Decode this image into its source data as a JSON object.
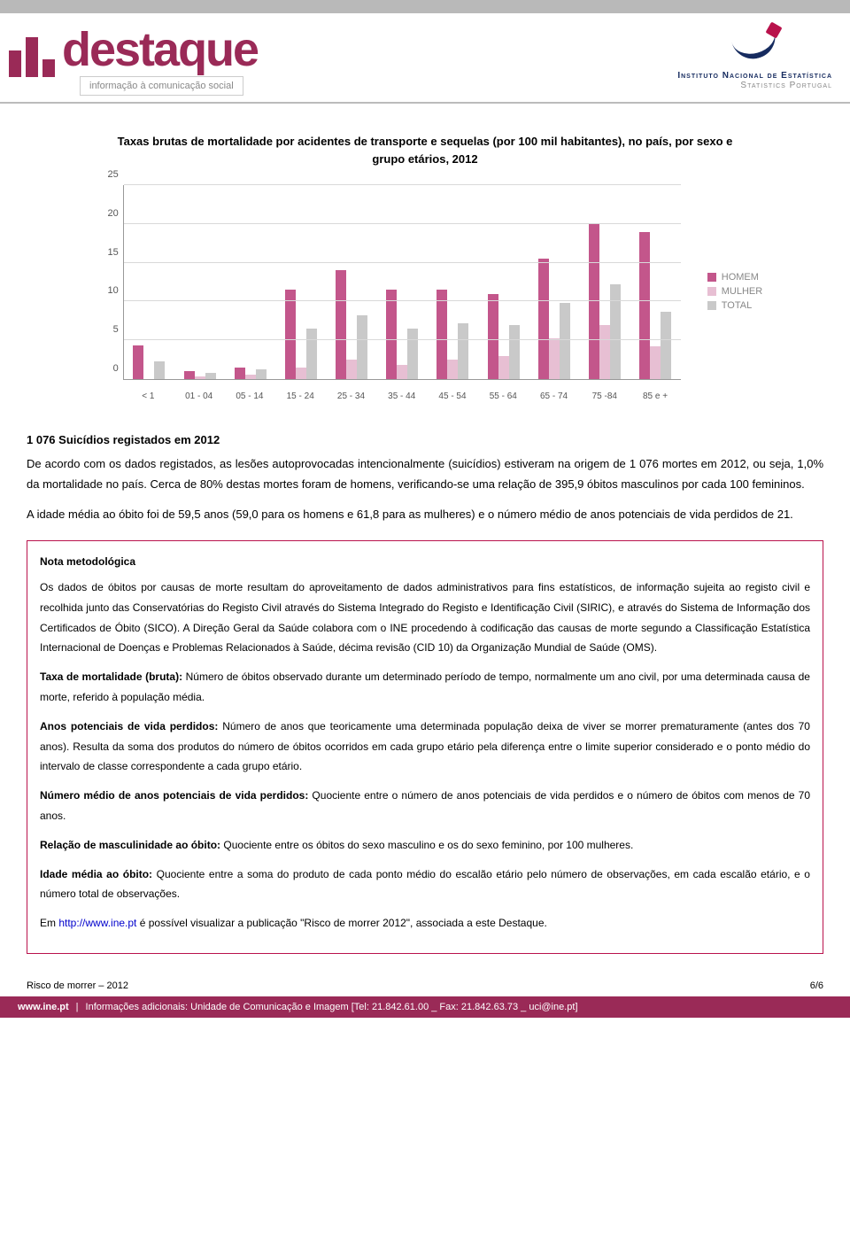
{
  "header": {
    "brand_word": "destaque",
    "tagline": "informação à comunicação social",
    "ine_line1": "Instituto Nacional de Estatística",
    "ine_line2": "Statistics Portugal"
  },
  "chart": {
    "title_line1": "Taxas brutas de mortalidade por acidentes de transporte e sequelas (por 100 mil habitantes), no país, por sexo e",
    "title_line2": "grupo etários, 2012",
    "categories": [
      "< 1",
      "01 - 04",
      "05 - 14",
      "15 - 24",
      "25 - 34",
      "35 - 44",
      "45 - 54",
      "55 - 64",
      "65 - 74",
      "75 -84",
      "85 e +"
    ],
    "series": [
      {
        "name": "HOMEM",
        "color": "#c3568b",
        "values": [
          4.3,
          1.0,
          1.5,
          11.5,
          14.0,
          11.5,
          11.5,
          11.0,
          15.5,
          20.0,
          19.0
        ]
      },
      {
        "name": "MULHER",
        "color": "#e7bfd3",
        "values": [
          0.0,
          0.4,
          0.6,
          1.5,
          2.5,
          1.8,
          2.5,
          3.0,
          5.3,
          7.0,
          4.2
        ]
      },
      {
        "name": "TOTAL",
        "color": "#c9c9c9",
        "values": [
          2.3,
          0.8,
          1.3,
          6.5,
          8.2,
          6.5,
          7.2,
          7.0,
          9.8,
          12.2,
          8.7
        ]
      }
    ],
    "ylim": [
      0,
      25
    ],
    "ytick_step": 5,
    "grid_color": "#d9d9d9",
    "axis_font_size": 11,
    "background_color": "#ffffff"
  },
  "section_heading": "1 076 Suicídios registados em 2012",
  "paragraphs": {
    "p1": "De acordo com os dados registados, as lesões autoprovocadas intencionalmente (suicídios) estiveram na origem de 1 076 mortes em 2012, ou seja, 1,0% da mortalidade no país. Cerca de 80% destas mortes foram de homens, verificando-se uma relação de 395,9 óbitos masculinos por cada 100 femininos.",
    "p2": "A idade média ao óbito foi de 59,5 anos (59,0 para os homens e 61,8 para as mulheres) e o número médio de anos potenciais de vida perdidos de 21."
  },
  "nota": {
    "title": "Nota metodológica",
    "intro": "Os dados de óbitos por causas de morte resultam do aproveitamento de dados administrativos para fins estatísticos, de informação sujeita ao registo civil e recolhida junto das Conservatórias do Registo Civil através do Sistema Integrado do Registo e Identificação Civil (SIRIC), e através do Sistema de Informação dos Certificados de Óbito (SICO). A Direção Geral da Saúde colabora com o INE procedendo à codificação das causas de morte segundo a Classificação Estatística Internacional de Doenças e Problemas Relacionados à Saúde, décima revisão (CID 10) da Organização Mundial de Saúde (OMS).",
    "defs": [
      {
        "label": "Taxa de mortalidade (bruta):",
        "text": " Número de óbitos observado durante um determinado período de tempo, normalmente um ano civil, por uma determinada causa de morte, referido à população média."
      },
      {
        "label": "Anos potenciais de vida perdidos:",
        "text": " Número de anos que teoricamente uma determinada população deixa de viver se morrer prematuramente (antes dos 70 anos). Resulta da soma dos produtos do número de óbitos ocorridos em cada grupo etário pela diferença entre o limite superior considerado e o ponto médio do intervalo de classe correspondente a cada grupo etário."
      },
      {
        "label": "Número médio de anos potenciais de vida perdidos:",
        "text": " Quociente entre o número de anos potenciais de vida perdidos e o número de óbitos com menos de 70 anos."
      },
      {
        "label": "Relação de masculinidade ao óbito:",
        "text": " Quociente entre os óbitos do sexo masculino e os do sexo feminino, por 100 mulheres."
      },
      {
        "label": "Idade média ao óbito:",
        "text": " Quociente entre a soma do produto de cada ponto médio do escalão etário pelo número de observações, em cada escalão etário, e o número total de observações."
      }
    ],
    "closing_pre": "Em ",
    "closing_link": "http://www.ine.pt",
    "closing_post": " é possível visualizar a publicação \"Risco de morrer 2012\", associada a este Destaque."
  },
  "footer": {
    "left": "Risco de morrer – 2012",
    "right": "6/6"
  },
  "bottombar": {
    "domain": "www.ine.pt",
    "rest": "Informações adicionais: Unidade de Comunicação e Imagem  [Tel: 21.842.61.00 _ Fax: 21.842.63.73 _ uci@ine.pt]"
  },
  "colors": {
    "brand": "#9a2a57",
    "ine_navy": "#162b5f",
    "ine_red": "#b9124c",
    "nota_border": "#b9124c",
    "link": "#0000cc"
  }
}
